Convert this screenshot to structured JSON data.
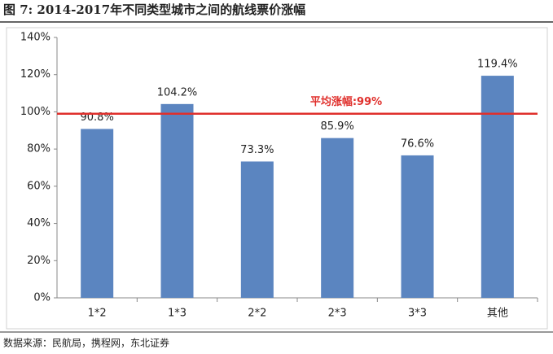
{
  "chart_data": {
    "type": "bar",
    "title": "图 7: 2014-2017年不同类型城市之间的航线票价涨幅",
    "source": "数据来源：民航局，携程网，东北证券",
    "categories": [
      "1*2",
      "1*3",
      "2*2",
      "2*3",
      "3*3",
      "其他"
    ],
    "values": [
      90.8,
      104.2,
      73.3,
      85.9,
      76.6,
      119.4
    ],
    "value_labels": [
      "90.8%",
      "104.2%",
      "73.3%",
      "85.9%",
      "76.6%",
      "119.4%"
    ],
    "color": "#5b85c0",
    "ylim": [
      0,
      140
    ],
    "yticks": [
      {
        "value": 0,
        "label": "0%"
      },
      {
        "value": 20,
        "label": "20%"
      },
      {
        "value": 40,
        "label": "40%"
      },
      {
        "value": 60,
        "label": "60%"
      },
      {
        "value": 80,
        "label": "80%"
      },
      {
        "value": 100,
        "label": "100%"
      },
      {
        "value": 120,
        "label": "120%"
      },
      {
        "value": 140,
        "label": "140%"
      }
    ],
    "reference_line": {
      "value": 99,
      "label": "平均涨幅:99%",
      "color": "#e0302c"
    }
  }
}
